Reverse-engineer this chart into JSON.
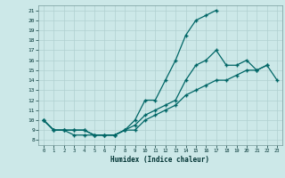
{
  "xlabel": "Humidex (Indice chaleur)",
  "xlim": [
    -0.5,
    23.5
  ],
  "ylim": [
    7.5,
    21.5
  ],
  "xticks": [
    0,
    1,
    2,
    3,
    4,
    5,
    6,
    7,
    8,
    9,
    10,
    11,
    12,
    13,
    14,
    15,
    16,
    17,
    18,
    19,
    20,
    21,
    22,
    23
  ],
  "yticks": [
    8,
    9,
    10,
    11,
    12,
    13,
    14,
    15,
    16,
    17,
    18,
    19,
    20,
    21
  ],
  "bg_color": "#cce8e8",
  "grid_color": "#aaaaaa",
  "line_color": "#006666",
  "line1_x": [
    0,
    1,
    2,
    3,
    4,
    5,
    6,
    7,
    8,
    9,
    10,
    11,
    12,
    13,
    14,
    15,
    16,
    17
  ],
  "line1_y": [
    10,
    9,
    9,
    8.5,
    8.5,
    8.5,
    8.5,
    8.5,
    9,
    10,
    12,
    12,
    14,
    16,
    18.5,
    20,
    20.5,
    21
  ],
  "line2_x": [
    0,
    1,
    2,
    3,
    4,
    5,
    6,
    7,
    8,
    9,
    10,
    11,
    12,
    13,
    14,
    15,
    16,
    17,
    18,
    19,
    20,
    21,
    22
  ],
  "line2_y": [
    10,
    9,
    9,
    9,
    9,
    8.5,
    8.5,
    8.5,
    9,
    9.5,
    10.5,
    11,
    11.5,
    12,
    14,
    15.5,
    16,
    17,
    15.5,
    15.5,
    16,
    15,
    15.5
  ],
  "line3_x": [
    0,
    1,
    2,
    3,
    4,
    5,
    6,
    7,
    8,
    9,
    10,
    11,
    12,
    13,
    14,
    15,
    16,
    17,
    18,
    19,
    20,
    21,
    22,
    23
  ],
  "line3_y": [
    10,
    9,
    9,
    9,
    9,
    8.5,
    8.5,
    8.5,
    9,
    9,
    10,
    10.5,
    11,
    11.5,
    12.5,
    13,
    13.5,
    14,
    14,
    14.5,
    15,
    15,
    15.5,
    14
  ]
}
